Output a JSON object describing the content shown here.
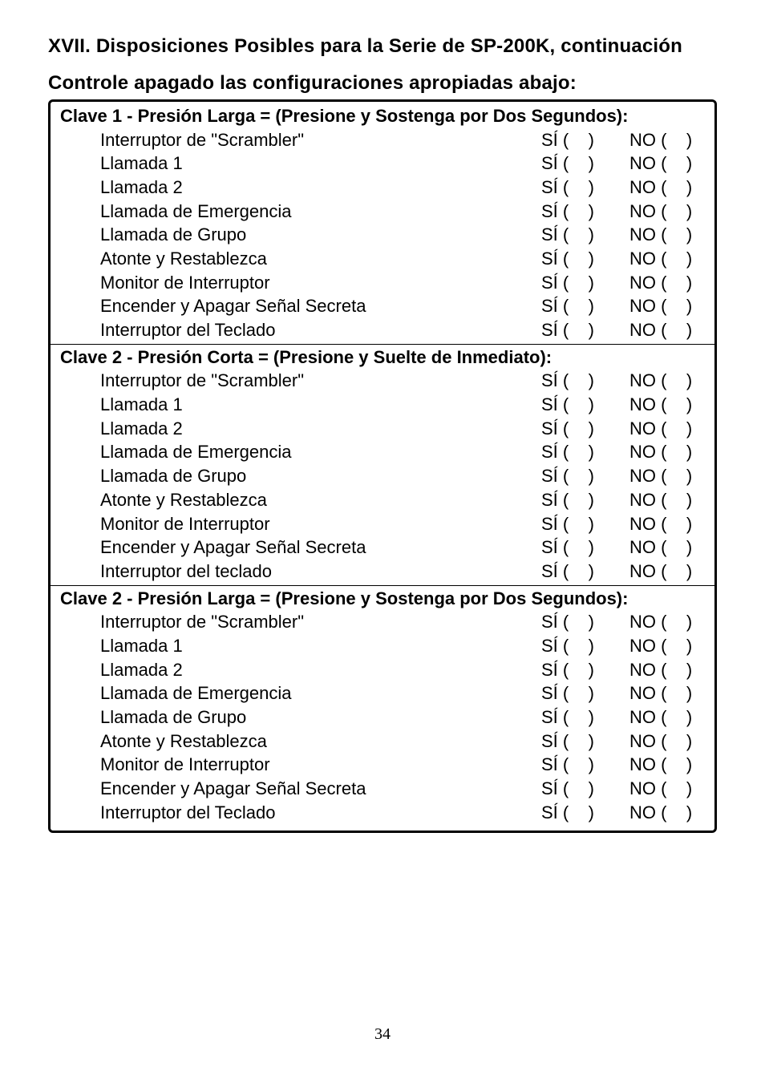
{
  "title": "XVII.  Disposiciones Posibles para la Serie de SP-200K, continuación",
  "subtitle": "Controle apagado las configuraciones apropiadas abajo:",
  "sections": [
    {
      "header": "Clave 1 - Presión Larga  =  (Presione y Sostenga por Dos Segundos):",
      "rows": [
        {
          "label": "Interruptor de \"Scrambler\"",
          "si": "SÍ (    )",
          "no": "NO (    )"
        },
        {
          "label": "Llamada 1",
          "si": "SÍ (    )",
          "no": "NO (    )"
        },
        {
          "label": "Llamada 2",
          "si": "SÍ (    )",
          "no": "NO (    )"
        },
        {
          "label": "Llamada de Emergencia",
          "si": "SÍ (    )",
          "no": "NO (    )"
        },
        {
          "label": "Llamada de Grupo",
          "si": "SÍ (    )",
          "no": "NO (    )"
        },
        {
          "label": "Atonte y Restablezca",
          "si": "SÍ (    )",
          "no": "NO (    )"
        },
        {
          "label": "Monitor de Interruptor",
          "si": "SÍ (    )",
          "no": "NO (    )"
        },
        {
          "label": "Encender y Apagar Señal Secreta",
          "si": "SÍ (    )",
          "no": "NO (    )"
        },
        {
          "label": "Interruptor del Teclado",
          "si": "SÍ (    )",
          "no": "NO (    )"
        }
      ]
    },
    {
      "header": "Clave 2 - Presión Corta  =  (Presione y Suelte de Inmediato):",
      "rows": [
        {
          "label": "Interruptor de \"Scrambler\"",
          "si": "SÍ (    )",
          "no": "NO (    )"
        },
        {
          "label": "Llamada 1",
          "si": "SÍ (    )",
          "no": "NO (    )"
        },
        {
          "label": "Llamada 2",
          "si": "SÍ (    )",
          "no": "NO (    )"
        },
        {
          "label": "Llamada de Emergencia",
          "si": "SÍ (    )",
          "no": "NO (    )"
        },
        {
          "label": "Llamada de Grupo",
          "si": "SÍ (    )",
          "no": "NO (    )"
        },
        {
          "label": "Atonte y Restablezca",
          "si": "SÍ (    )",
          "no": "NO (    )"
        },
        {
          "label": "Monitor de Interruptor",
          "si": "SÍ (    )",
          "no": "NO (    )"
        },
        {
          "label": "Encender y Apagar Señal Secreta",
          "si": "SÍ (    )",
          "no": "NO (    )"
        },
        {
          "label": "Interruptor del teclado",
          "si": "SÍ (    )",
          "no": "NO (    )"
        }
      ]
    },
    {
      "header": "Clave 2 - Presión Larga  =  (Presione y Sostenga por Dos Segundos):",
      "rows": [
        {
          "label": "Interruptor de \"Scrambler\"",
          "si": "SÍ (    )",
          "no": "NO (    )"
        },
        {
          "label": "Llamada 1",
          "si": "SÍ (    )",
          "no": "NO (    )"
        },
        {
          "label": "Llamada 2",
          "si": "SÍ (    )",
          "no": "NO (    )"
        },
        {
          "label": "Llamada de Emergencia",
          "si": "SÍ (    )",
          "no": "NO (    )"
        },
        {
          "label": "Llamada de Grupo",
          "si": "SÍ (    )",
          "no": "NO (    )"
        },
        {
          "label": "Atonte y Restablezca",
          "si": "SÍ (    )",
          "no": "NO (    )"
        },
        {
          "label": "Monitor de Interruptor",
          "si": "SÍ (    )",
          "no": "NO (    )"
        },
        {
          "label": "Encender y Apagar Señal Secreta",
          "si": "SÍ (    )",
          "no": "NO (    )"
        },
        {
          "label": "Interruptor del Teclado",
          "si": "SÍ (    )",
          "no": "NO (    )"
        }
      ]
    }
  ],
  "pageNumber": "34"
}
